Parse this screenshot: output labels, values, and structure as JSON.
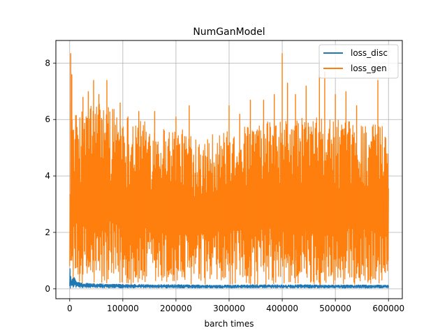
{
  "chart_data": {
    "type": "line",
    "title": "NumGanModel",
    "xlabel": "barch times",
    "ylabel": "",
    "xlim": [
      -26000,
      626000
    ],
    "ylim": [
      -0.35,
      8.8
    ],
    "x_ticks": [
      0,
      100000,
      200000,
      300000,
      400000,
      500000,
      600000
    ],
    "x_tick_labels": [
      "0",
      "100000",
      "200000",
      "300000",
      "400000",
      "500000",
      "600000"
    ],
    "y_ticks": [
      0,
      2,
      4,
      6,
      8
    ],
    "y_tick_labels": [
      "0",
      "2",
      "4",
      "6",
      "8"
    ],
    "grid": true,
    "legend_position": "top-right",
    "series": [
      {
        "name": "loss_disc",
        "color": "#1f77b4",
        "x": [
          0,
          2000,
          5000,
          8000,
          10000,
          12000,
          20000,
          40000,
          80000,
          120000,
          160000,
          200000,
          240000,
          280000,
          320000,
          360000,
          400000,
          440000,
          480000,
          520000,
          560000,
          600000
        ],
        "low": [
          0.0,
          0.02,
          0.03,
          0.05,
          0.05,
          0.04,
          0.03,
          0.03,
          0.02,
          0.02,
          0.02,
          0.02,
          0.02,
          0.02,
          0.02,
          0.02,
          0.02,
          0.02,
          0.02,
          0.02,
          0.02,
          0.02
        ],
        "high": [
          0.8,
          0.35,
          0.42,
          0.55,
          0.35,
          0.28,
          0.22,
          0.2,
          0.18,
          0.17,
          0.16,
          0.16,
          0.15,
          0.14,
          0.15,
          0.16,
          0.15,
          0.16,
          0.15,
          0.15,
          0.15,
          0.15
        ]
      },
      {
        "name": "loss_gen",
        "color": "#ff7f0e",
        "x": [
          0,
          2000,
          5000,
          10000,
          20000,
          40000,
          60000,
          80000,
          100000,
          150000,
          200000,
          250000,
          300000,
          350000,
          400000,
          450000,
          500000,
          550000,
          600000
        ],
        "low": [
          0.8,
          0.4,
          0.3,
          0.25,
          0.2,
          0.15,
          0.15,
          0.15,
          0.15,
          0.15,
          0.15,
          0.15,
          0.15,
          0.15,
          0.15,
          0.15,
          0.15,
          0.15,
          0.2
        ],
        "high": [
          5.0,
          8.35,
          5.9,
          6.2,
          6.3,
          6.6,
          6.7,
          6.5,
          6.3,
          5.9,
          5.7,
          5.5,
          5.6,
          5.9,
          6.0,
          6.1,
          6.0,
          5.9,
          5.8
        ],
        "spikes": [
          {
            "x": 2000,
            "y": 8.35
          },
          {
            "x": 4000,
            "y": 7.6
          },
          {
            "x": 25000,
            "y": 6.8
          },
          {
            "x": 35000,
            "y": 7.0
          },
          {
            "x": 45000,
            "y": 7.4
          },
          {
            "x": 55000,
            "y": 6.9
          },
          {
            "x": 70000,
            "y": 7.4
          },
          {
            "x": 95000,
            "y": 6.6
          },
          {
            "x": 130000,
            "y": 6.3
          },
          {
            "x": 160000,
            "y": 6.3
          },
          {
            "x": 200000,
            "y": 6.1
          },
          {
            "x": 225000,
            "y": 6.5
          },
          {
            "x": 300000,
            "y": 6.5
          },
          {
            "x": 320000,
            "y": 6.2
          },
          {
            "x": 340000,
            "y": 6.7
          },
          {
            "x": 365000,
            "y": 6.7
          },
          {
            "x": 385000,
            "y": 6.9
          },
          {
            "x": 400000,
            "y": 8.35
          },
          {
            "x": 410000,
            "y": 7.3
          },
          {
            "x": 425000,
            "y": 6.9
          },
          {
            "x": 445000,
            "y": 7.2
          },
          {
            "x": 470000,
            "y": 8.1
          },
          {
            "x": 480000,
            "y": 7.7
          },
          {
            "x": 500000,
            "y": 6.9
          },
          {
            "x": 520000,
            "y": 7.0
          },
          {
            "x": 540000,
            "y": 6.5
          },
          {
            "x": 580000,
            "y": 7.4
          }
        ]
      }
    ]
  }
}
